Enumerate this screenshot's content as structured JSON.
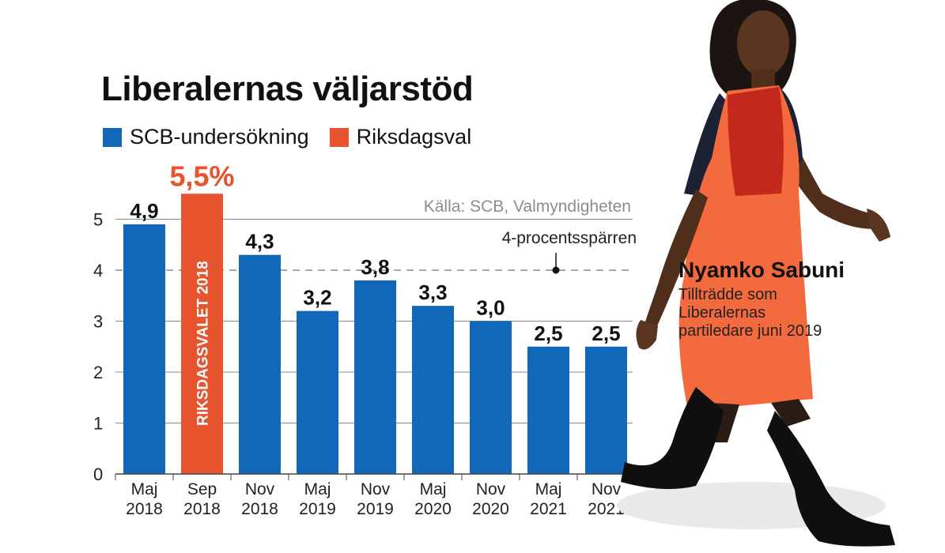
{
  "title": "Liberalernas väljarstöd",
  "legend": [
    {
      "label": "SCB-undersökning",
      "color": "#1168b8"
    },
    {
      "label": "Riksdagsval",
      "color": "#e8542d"
    }
  ],
  "source": "Källa: SCB, Valmyndigheten",
  "threshold": {
    "label": "4-procentsspärren",
    "value": 4
  },
  "chart_data": {
    "type": "bar",
    "categories": [
      [
        "Maj",
        "2018"
      ],
      [
        "Sep",
        "2018"
      ],
      [
        "Nov",
        "2018"
      ],
      [
        "Maj",
        "2019"
      ],
      [
        "Nov",
        "2019"
      ],
      [
        "Maj",
        "2020"
      ],
      [
        "Nov",
        "2020"
      ],
      [
        "Maj",
        "2021"
      ],
      [
        "Nov",
        "2021"
      ]
    ],
    "values": [
      4.9,
      5.5,
      4.3,
      3.2,
      3.8,
      3.3,
      3.0,
      2.5,
      2.5
    ],
    "labels": [
      "4,9",
      "5,5%",
      "4,3",
      "3,2",
      "3,8",
      "3,3",
      "3,0",
      "2,5",
      "2,5"
    ],
    "highlight_index": 1,
    "highlight_bar_text": "RIKSDAGSVALET 2018",
    "yticks": [
      "0",
      "1",
      "2",
      "3",
      "4",
      "5"
    ],
    "ylim": [
      0,
      5.5
    ],
    "colors": {
      "survey": "#1168b8",
      "election": "#e8542d",
      "grid": "#8a8a8a"
    }
  },
  "caption": {
    "name": "Nyamko Sabuni",
    "lines": [
      "Tillträdde som",
      "Liberalernas",
      "partiledare juni 2019"
    ]
  }
}
